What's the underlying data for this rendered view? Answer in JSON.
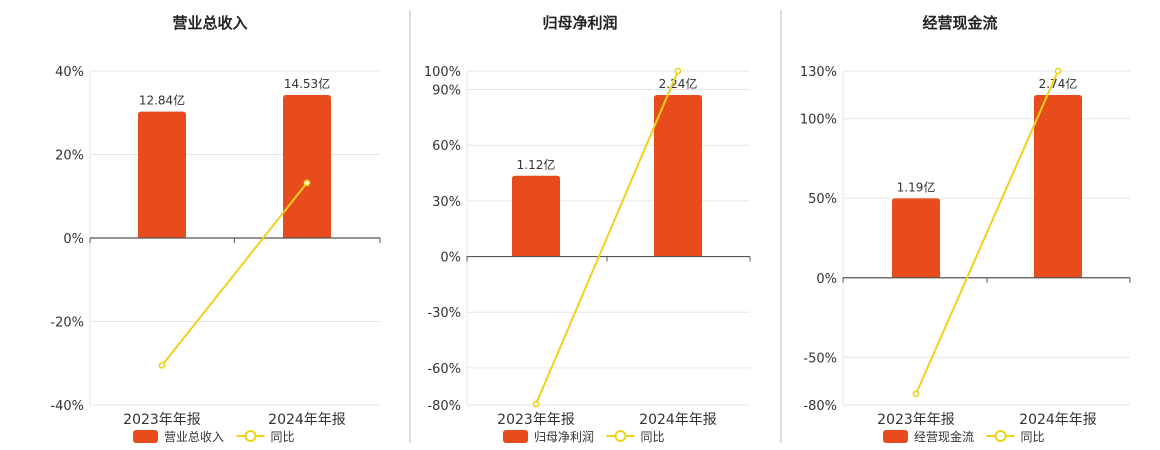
{
  "colors": {
    "bar": "#e84b1c",
    "line": "#f0d21b",
    "axis": "#555555",
    "grid": "#e6e6e6",
    "divider": "#bbbbbb",
    "text": "#333333"
  },
  "chart_data": [
    {
      "type": "bar",
      "title": "营业总收入",
      "categories": [
        "2023年年报",
        "2024年年报"
      ],
      "series": [
        {
          "name": "营业总收入",
          "type": "bar",
          "values": [
            12.84,
            14.53
          ],
          "value_labels": [
            "12.84亿",
            "14.53亿"
          ],
          "unit": "亿"
        },
        {
          "name": "同比",
          "type": "line",
          "values": [
            -30.5,
            13.2
          ],
          "unit": "%"
        }
      ],
      "y_ticks": [
        40,
        20,
        0,
        -20,
        -40
      ],
      "y_tick_labels": [
        "40%",
        "20%",
        "0%",
        "-20%",
        "-40%"
      ],
      "ylim": [
        -40,
        40
      ],
      "grid": true,
      "legend": "bottom"
    },
    {
      "type": "bar",
      "title": "归母净利润",
      "categories": [
        "2023年年报",
        "2024年年报"
      ],
      "series": [
        {
          "name": "归母净利润",
          "type": "bar",
          "values": [
            1.12,
            2.24
          ],
          "value_labels": [
            "1.12亿",
            "2.24亿"
          ],
          "unit": "亿"
        },
        {
          "name": "同比",
          "type": "line",
          "values": [
            -79.5,
            100.0
          ],
          "unit": "%"
        }
      ],
      "y_ticks": [
        100,
        90,
        60,
        30,
        0,
        -30,
        -60,
        -80
      ],
      "y_tick_labels": [
        "100%",
        "90%",
        "60%",
        "30%",
        "0%",
        "-30%",
        "-60%",
        "-80%"
      ],
      "ylim": [
        -80,
        100
      ],
      "grid": true,
      "legend": "bottom"
    },
    {
      "type": "bar",
      "title": "经营现金流",
      "categories": [
        "2023年年报",
        "2024年年报"
      ],
      "series": [
        {
          "name": "经营现金流",
          "type": "bar",
          "values": [
            1.19,
            2.74
          ],
          "value_labels": [
            "1.19亿",
            "2.74亿"
          ],
          "unit": "亿"
        },
        {
          "name": "同比",
          "type": "line",
          "values": [
            -73.0,
            130.0
          ],
          "unit": "%"
        }
      ],
      "y_ticks": [
        130,
        100,
        50,
        0,
        -50,
        -80
      ],
      "y_tick_labels": [
        "130%",
        "100%",
        "50%",
        "0%",
        "-50%",
        "-80%"
      ],
      "ylim": [
        -80,
        130
      ],
      "grid": true,
      "legend": "bottom"
    }
  ]
}
